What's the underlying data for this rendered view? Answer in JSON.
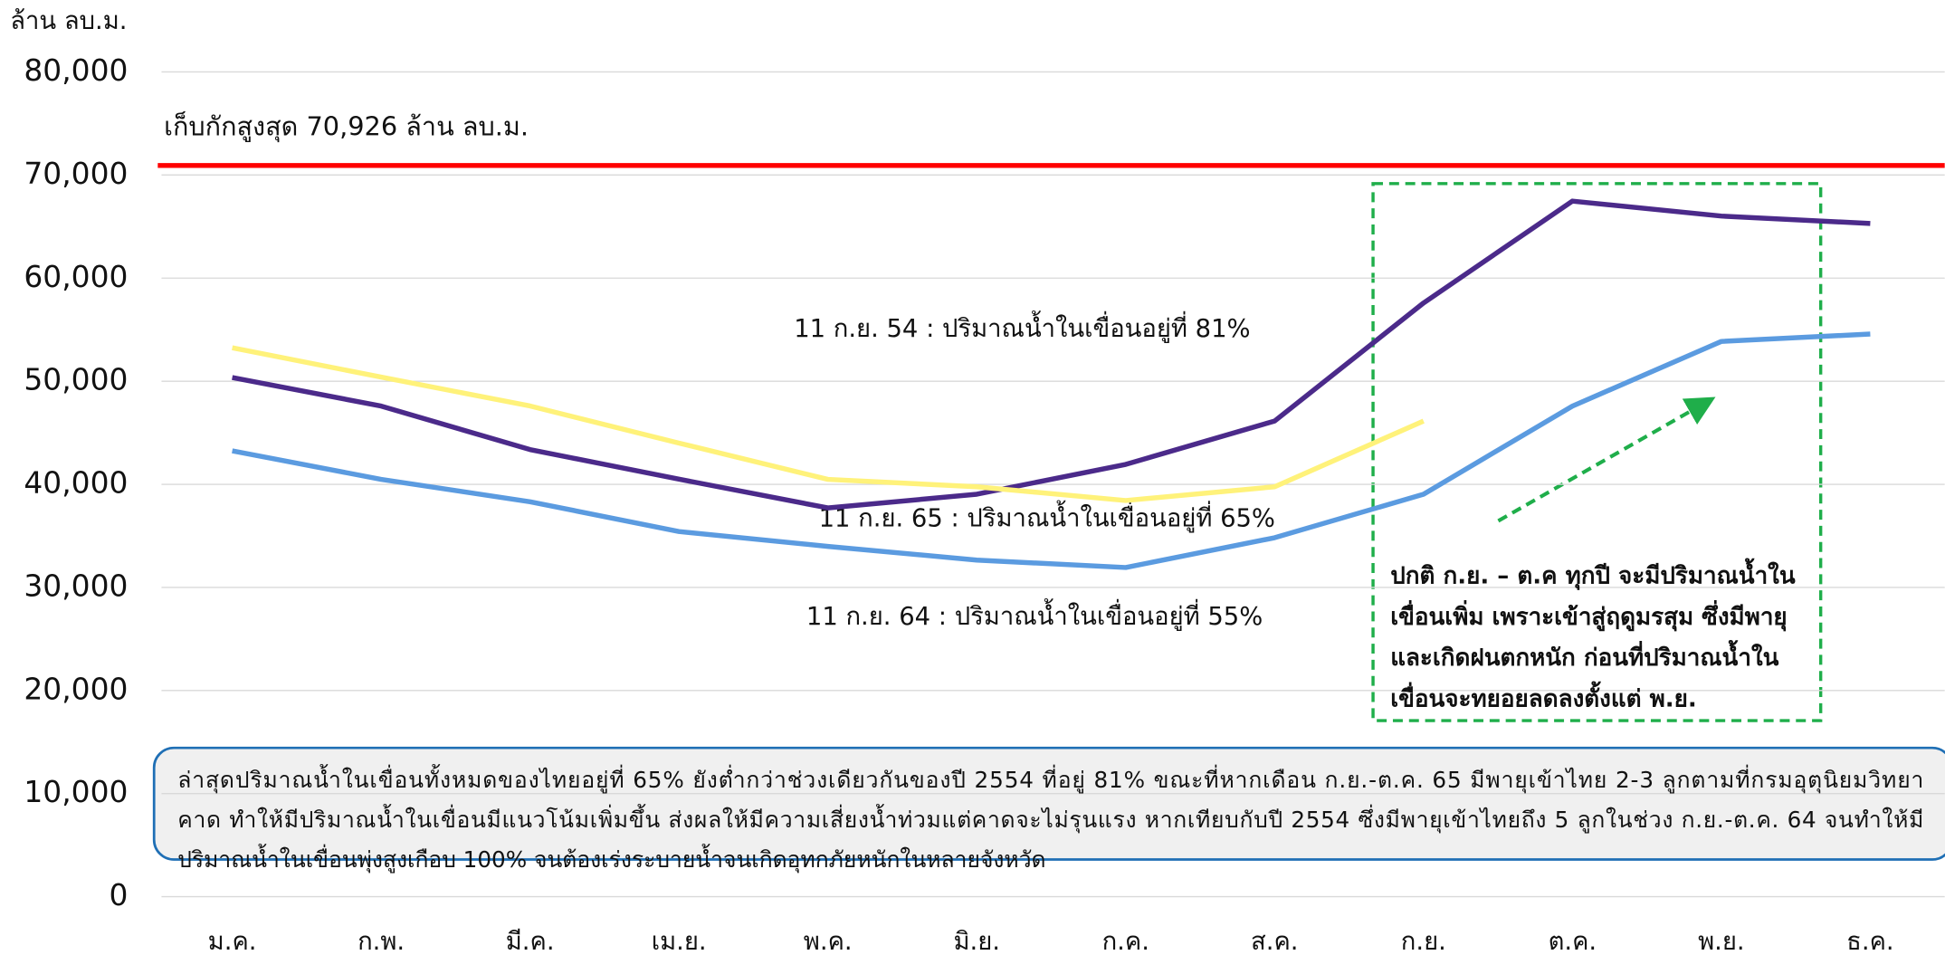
{
  "chart_data": {
    "type": "line",
    "y_label": "ล้าน ลบ.ม.",
    "categories": [
      "ม.ค.",
      "ก.พ.",
      "มี.ค.",
      "เม.ย.",
      "พ.ค.",
      "มิ.ย.",
      "ก.ค.",
      "ส.ค.",
      "ก.ย.",
      "ต.ค.",
      "พ.ย.",
      "ธ.ค."
    ],
    "series": [
      {
        "color": "#4b2a8a",
        "values": [
          50360,
          47590,
          43370,
          40500,
          37710,
          39040,
          41930,
          46140,
          57590,
          67470,
          66020,
          65300
        ]
      },
      {
        "color": "#fff27a",
        "values": [
          53250,
          50400,
          47600,
          44000,
          40480,
          39760,
          38430,
          39760,
          46140,
          null,
          null,
          null
        ]
      },
      {
        "color": "#5b9be0",
        "values": [
          43250,
          40480,
          38310,
          35420,
          33980,
          32650,
          31930,
          34820,
          39040,
          47590,
          53860,
          54580
        ]
      }
    ],
    "ylim": [
      0,
      80000
    ],
    "yticks": [
      {
        "value": 0,
        "label": "0"
      },
      {
        "value": 10000,
        "label": "10,000"
      },
      {
        "value": 20000,
        "label": "20,000"
      },
      {
        "value": 30000,
        "label": "30,000"
      },
      {
        "value": 40000,
        "label": "40,000"
      },
      {
        "value": 50000,
        "label": "50,000"
      },
      {
        "value": 60000,
        "label": "60,000"
      },
      {
        "value": 70000,
        "label": "70,000"
      },
      {
        "value": 80000,
        "label": "80,000"
      }
    ],
    "grid": true,
    "reference_line": {
      "value": 70926,
      "color": "#ff0000",
      "label": "เก็บกักสูงสุด 70,926 ล้าน ลบ.ม."
    },
    "annotations": [
      "11 ก.ย. 54 : ปริมาณน้ำในเขื่อนอยู่ที่ 81%",
      "11 ก.ย. 65 : ปริมาณน้ำในเขื่อนอยู่ที่ 65%",
      "11 ก.ย. 64 : ปริมาณน้ำในเขื่อนอยู่ที่ 55%"
    ],
    "box_text": [
      "ปกติ ก.ย. – ต.ค ทุกปี จะมีปริมาณน้ำใน",
      "เขื่อนเพิ่ม เพราะเข้าสู่ฤดูมรสุม ซึ่งมีพายุ",
      "และเกิดฝนตกหนัก ก่อนที่ปริมาณน้ำใน",
      "เขื่อนจะทยอยลดลงตั้งแต่ พ.ย."
    ],
    "note": [
      "ล่าสุดปริมาณน้ำในเขื่อนทั้งหมดของไทยอยู่ที่ 65% ยังต่ำกว่าช่วงเดียวกันของปี 2554 ที่อยู่ 81% ขณะที่หากเดือน ก.ย.-ต.ค. 65 มีพายุเข้าไทย 2-3 ลูกตามที่กรมอุตุนิยมวิทยา",
      "คาด ทำให้มีปริมาณน้ำในเขื่อนมีแนวโน้มเพิ่มขึ้น ส่งผลให้มีความเสี่ยงน้ำท่วมแต่คาดจะไม่รุนแรง หากเทียบกับปี 2554 ซึ่งมีพายุเข้าไทยถึง 5 ลูกในช่วง ก.ย.-ต.ค. 64 จนทำให้มี",
      "ปริมาณน้ำในเขื่อนพุ่งสูงเกือบ 100% จนต้องเร่งระบายน้ำจนเกิดอุทกภัยหนักในหลายจังหวัด"
    ]
  }
}
